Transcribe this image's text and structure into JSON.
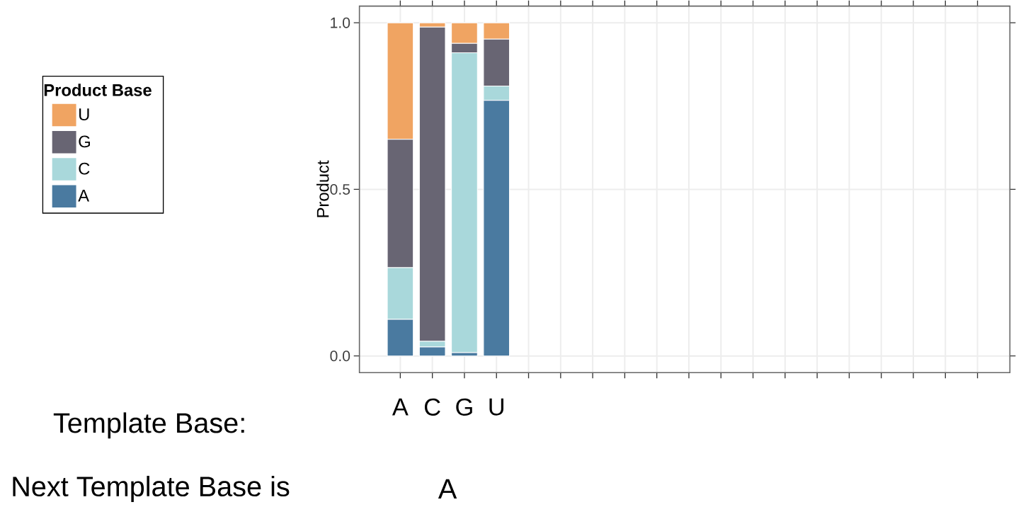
{
  "chart_data": {
    "type": "bar",
    "stacked": true,
    "ylabel": "Product",
    "legend_title": "Product Base",
    "legend": "left",
    "categories": [
      "A",
      "C",
      "G",
      "U",
      null,
      null,
      null,
      null,
      null,
      null,
      null,
      null,
      null,
      null,
      null,
      null,
      null,
      null,
      null
    ],
    "series": [
      {
        "name": "A",
        "color": "#4a7aa0",
        "values": [
          0.11,
          0.027,
          0.01,
          0.767,
          null,
          null,
          null,
          null,
          null,
          null,
          null,
          null,
          null,
          null,
          null,
          null,
          null,
          null,
          null
        ]
      },
      {
        "name": "C",
        "color": "#a9d8db",
        "values": [
          0.155,
          0.017,
          0.9,
          0.043,
          null,
          null,
          null,
          null,
          null,
          null,
          null,
          null,
          null,
          null,
          null,
          null,
          null,
          null,
          null
        ]
      },
      {
        "name": "G",
        "color": "#686573",
        "values": [
          0.385,
          0.943,
          0.028,
          0.141,
          null,
          null,
          null,
          null,
          null,
          null,
          null,
          null,
          null,
          null,
          null,
          null,
          null,
          null,
          null
        ]
      },
      {
        "name": "U",
        "color": "#f0a462",
        "values": [
          0.35,
          0.013,
          0.062,
          0.049,
          null,
          null,
          null,
          null,
          null,
          null,
          null,
          null,
          null,
          null,
          null,
          null,
          null,
          null,
          null
        ]
      }
    ],
    "ylim": [
      -0.05,
      1.05
    ],
    "yticks": [
      {
        "value": 0,
        "label": "0.0"
      },
      {
        "value": 0.5,
        "label": "0.5"
      },
      {
        "value": 1,
        "label": "1.0"
      }
    ],
    "grid": true,
    "annotations": [
      "Template Base:",
      "Next Template Base is",
      "A"
    ]
  }
}
